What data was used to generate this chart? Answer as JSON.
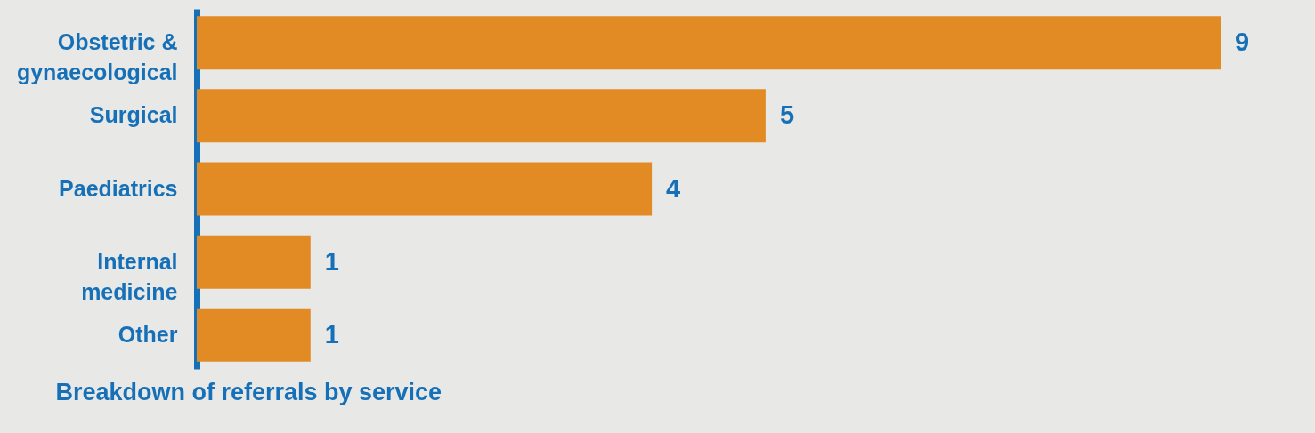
{
  "chart_data": {
    "type": "bar",
    "orientation": "horizontal",
    "title": "Breakdown of referrals by service",
    "categories": [
      "Obstetric & gynaecological",
      "Surgical",
      "Paediatrics",
      "Internal medicine",
      "Other"
    ],
    "values": [
      9,
      5,
      4,
      1,
      1
    ],
    "color": "#e28b25",
    "data_labels": true
  }
}
